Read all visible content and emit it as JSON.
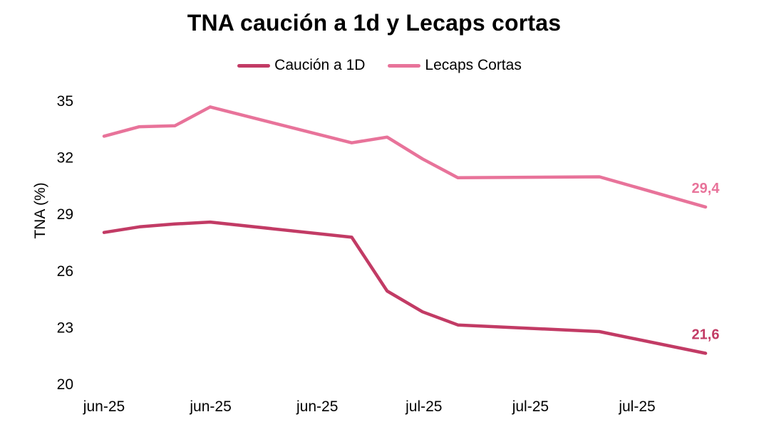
{
  "chart_data": {
    "type": "line",
    "title": "TNA caución a 1d y Lecaps cortas",
    "xlabel": "",
    "ylabel": "TNA (%)",
    "ylim": [
      20,
      35
    ],
    "yticks": [
      "20",
      "23",
      "26",
      "29",
      "32",
      "35"
    ],
    "x_tick_labels": [
      "jun-25",
      "jun-25",
      "jun-25",
      "jul-25",
      "jul-25",
      "jul-25"
    ],
    "legend_position": "top-center",
    "grid": false,
    "series": [
      {
        "name": "Caución a 1D",
        "color": "#c23b65",
        "x": [
          0,
          1,
          2,
          3,
          7,
          8,
          9,
          10,
          14,
          17
        ],
        "values": [
          28.0,
          28.3,
          28.45,
          28.55,
          27.75,
          24.9,
          23.8,
          23.1,
          22.75,
          21.6
        ],
        "end_label": "21,6"
      },
      {
        "name": "Lecaps Cortas",
        "color": "#e8739a",
        "x": [
          0,
          1,
          2,
          3,
          7,
          8,
          9,
          10,
          14,
          17
        ],
        "values": [
          33.1,
          33.6,
          33.65,
          34.65,
          32.75,
          33.05,
          31.9,
          30.9,
          30.95,
          29.35
        ],
        "end_label": "29,4"
      }
    ]
  }
}
